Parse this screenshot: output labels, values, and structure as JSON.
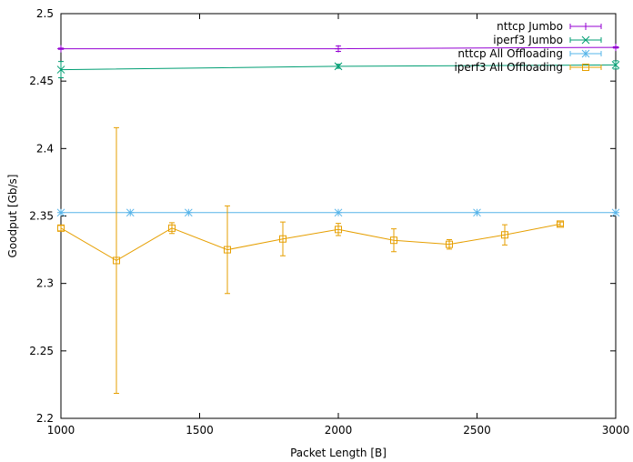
{
  "chart_data": {
    "type": "line",
    "title": "",
    "xlabel": "Packet Length [B]",
    "ylabel": "Goodput [Gb/s]",
    "xlim": [
      1000,
      3000
    ],
    "ylim": [
      2.2,
      2.5
    ],
    "xticks": [
      1000,
      1500,
      2000,
      2500,
      3000
    ],
    "yticks": [
      2.2,
      2.25,
      2.3,
      2.35,
      2.4,
      2.45,
      2.5
    ],
    "xtick_labels": [
      "1000",
      "1500",
      "2000",
      "2500",
      "3000"
    ],
    "ytick_labels": [
      "2.2",
      "2.25",
      "2.3",
      "2.35",
      "2.4",
      "2.45",
      "2.5"
    ],
    "grid": false,
    "legend_position": "top-right",
    "series": [
      {
        "name": "nttcp Jumbo",
        "color": "#9400d3",
        "marker": "plus",
        "x": [
          1000,
          2000,
          3000
        ],
        "y": [
          2.474,
          2.474,
          2.475
        ],
        "err": [
          0.0005,
          0.002,
          0.0005
        ]
      },
      {
        "name": "iperf3 Jumbo",
        "color": "#009e73",
        "marker": "cross",
        "x": [
          1000,
          2000,
          3000
        ],
        "y": [
          2.4585,
          2.461,
          2.462
        ],
        "err": [
          0.006,
          0.0015,
          0.003
        ]
      },
      {
        "name": "nttcp All Offloading",
        "color": "#56b4e9",
        "marker": "star",
        "x": [
          1000,
          1250,
          1460,
          2000,
          2500,
          3000
        ],
        "y": [
          2.3525,
          2.3525,
          2.3525,
          2.3525,
          2.3525,
          2.3525
        ],
        "err": [
          0,
          0,
          0,
          0,
          0,
          0
        ]
      },
      {
        "name": "iperf3 All Offloading",
        "color": "#e69f00",
        "marker": "box",
        "x": [
          1000,
          1200,
          1400,
          1600,
          1800,
          2000,
          2200,
          2400,
          2600,
          2800
        ],
        "y": [
          2.341,
          2.317,
          2.341,
          2.325,
          2.333,
          2.34,
          2.332,
          2.329,
          2.336,
          2.344
        ],
        "err": [
          0.002,
          0.0985,
          0.004,
          0.0325,
          0.0125,
          0.0045,
          0.0085,
          0.0035,
          0.0075,
          0.0015
        ]
      }
    ]
  }
}
